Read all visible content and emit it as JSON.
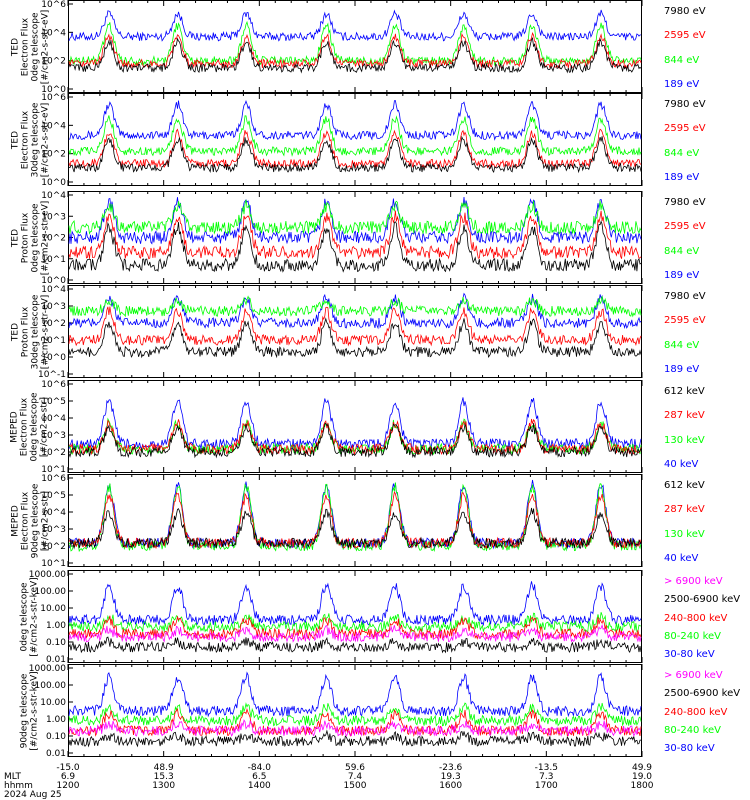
{
  "colors": {
    "blue": "#0000ff",
    "red": "#ff0000",
    "green": "#00ff00",
    "black": "#000000",
    "magenta": "#ff00ff"
  },
  "panels": [
    {
      "id": "ted-e-0deg",
      "ylabel": [
        "TED",
        "Electron Flux",
        "0deg telescope",
        "[#/cm2-s-str-eV]"
      ],
      "yticks": [
        "10^0",
        "10^2",
        "10^4",
        "10^6"
      ],
      "legend": [
        {
          "text": "7980 eV",
          "color": "black"
        },
        {
          "text": "2595 eV",
          "color": "red"
        },
        {
          "text": "844 eV",
          "color": "green"
        },
        {
          "text": "189 eV",
          "color": "blue"
        }
      ]
    },
    {
      "id": "ted-e-30deg",
      "ylabel": [
        "TED",
        "Electron Flux",
        "30deg telescope",
        "[#/cm2-s-str-eV]"
      ],
      "yticks": [
        "10^0",
        "10^2",
        "10^4",
        "10^6"
      ],
      "legend": [
        {
          "text": "7980 eV",
          "color": "black"
        },
        {
          "text": "2595 eV",
          "color": "red"
        },
        {
          "text": "844 eV",
          "color": "green"
        },
        {
          "text": "189 eV",
          "color": "blue"
        }
      ]
    },
    {
      "id": "ted-p-0deg",
      "ylabel": [
        "TED",
        "Proton Flux",
        "0deg telescope",
        "[#/cm2-s-str-eV]"
      ],
      "yticks": [
        "10^0",
        "10^1",
        "10^2",
        "10^3",
        "10^4"
      ],
      "legend": [
        {
          "text": "7980 eV",
          "color": "black"
        },
        {
          "text": "2595 eV",
          "color": "red"
        },
        {
          "text": "844 eV",
          "color": "green"
        },
        {
          "text": "189 eV",
          "color": "blue"
        }
      ]
    },
    {
      "id": "ted-p-30deg",
      "ylabel": [
        "TED",
        "Proton Flux",
        "30deg telescope",
        "[#/cm2-s-str-eV]"
      ],
      "yticks": [
        "10^-1",
        "10^0",
        "10^1",
        "10^2",
        "10^3",
        "10^4"
      ],
      "legend": [
        {
          "text": "7980 eV",
          "color": "black"
        },
        {
          "text": "2595 eV",
          "color": "red"
        },
        {
          "text": "844 eV",
          "color": "green"
        },
        {
          "text": "189 eV",
          "color": "blue"
        }
      ]
    },
    {
      "id": "meped-e-0deg",
      "ylabel": [
        "MEPED",
        "Electron Flux",
        "0deg telescope",
        "[#/cm2-s-str]"
      ],
      "yticks": [
        "10^1",
        "10^2",
        "10^3",
        "10^4",
        "10^5",
        "10^6"
      ],
      "legend": [
        {
          "text": "612 keV",
          "color": "black"
        },
        {
          "text": "287 keV",
          "color": "red"
        },
        {
          "text": "130 keV",
          "color": "green"
        },
        {
          "text": "40 keV",
          "color": "blue"
        }
      ]
    },
    {
      "id": "meped-e-90deg",
      "ylabel": [
        "MEPED",
        "Electron Flux",
        "90deg telescope",
        "[#/cm2-s-str]"
      ],
      "yticks": [
        "10^1",
        "10^2",
        "10^3",
        "10^4",
        "10^5",
        "10^6"
      ],
      "legend": [
        {
          "text": "612 keV",
          "color": "black"
        },
        {
          "text": "287 keV",
          "color": "red"
        },
        {
          "text": "130 keV",
          "color": "green"
        },
        {
          "text": "40 keV",
          "color": "blue"
        }
      ]
    },
    {
      "id": "meped-p-0deg",
      "ylabel": [
        "0deg telescope",
        "[#/cm2-s-str-keV]"
      ],
      "yticks": [
        "0.01",
        "0.10",
        "1.00",
        "10.00",
        "100.00",
        "1000.00"
      ],
      "legend": [
        {
          "text": "> 6900 keV",
          "color": "magenta"
        },
        {
          "text": "2500-6900 keV",
          "color": "black"
        },
        {
          "text": "240-800 keV",
          "color": "red"
        },
        {
          "text": "80-240 keV",
          "color": "green"
        },
        {
          "text": "30-80 keV",
          "color": "blue"
        }
      ]
    },
    {
      "id": "meped-p-90deg",
      "ylabel": [
        "90deg telescope",
        "[#/cm2-s-str-keV]"
      ],
      "yticks": [
        "0.01",
        "0.10",
        "1.00",
        "10.00",
        "100.00",
        "1000.00"
      ],
      "legend": [
        {
          "text": "> 6900 keV",
          "color": "magenta"
        },
        {
          "text": "2500-6900 keV",
          "color": "black"
        },
        {
          "text": "240-800 keV",
          "color": "red"
        },
        {
          "text": "80-240 keV",
          "color": "green"
        },
        {
          "text": "30-80 keV",
          "color": "blue"
        }
      ]
    }
  ],
  "xaxis": {
    "row_labels": [
      "MLT",
      "hhmm",
      "2024 Aug 25"
    ],
    "lat": [
      "-15.0",
      "48.9",
      "-84.0",
      "59.6",
      "-23.6",
      "-13.5",
      "49.9"
    ],
    "mlt": [
      "6.9",
      "15.3",
      "6.5",
      "7.4",
      "19.3",
      "7.3",
      "19.0"
    ],
    "hhmm": [
      "1200",
      "1300",
      "1400",
      "1500",
      "1600",
      "1700",
      "1800"
    ]
  },
  "chart_data": [
    {
      "type": "line",
      "title": "",
      "xlabel": "hhmm",
      "ylabel": "TED Electron Flux 0deg telescope [#/cm2-s-str-eV]",
      "x": [
        "1200",
        "1300",
        "1400",
        "1500",
        "1600",
        "1700",
        "1800"
      ],
      "yscale": "log",
      "ylim": [
        "1e0",
        "1e6"
      ],
      "series": [
        {
          "name": "7980 eV",
          "baseline": 30,
          "peak": 2000
        },
        {
          "name": "2595 eV",
          "baseline": 60,
          "peak": 5000
        },
        {
          "name": "844 eV",
          "baseline": 100,
          "peak": 30000
        },
        {
          "name": "189 eV",
          "baseline": 5000,
          "peak": 200000
        }
      ]
    },
    {
      "type": "line",
      "title": "",
      "xlabel": "hhmm",
      "ylabel": "TED Electron Flux 30deg telescope [#/cm2-s-str-eV]",
      "x": [
        "1200",
        "1300",
        "1400",
        "1500",
        "1600",
        "1700",
        "1800"
      ],
      "yscale": "log",
      "ylim": [
        "1e0",
        "1e6"
      ],
      "series": [
        {
          "name": "7980 eV",
          "baseline": 10,
          "peak": 1000
        },
        {
          "name": "2595 eV",
          "baseline": 20,
          "peak": 3000
        },
        {
          "name": "844 eV",
          "baseline": 150,
          "peak": 30000
        },
        {
          "name": "189 eV",
          "baseline": 2000,
          "peak": 300000
        }
      ]
    },
    {
      "type": "line",
      "title": "",
      "xlabel": "hhmm",
      "ylabel": "TED Proton Flux 0deg telescope [#/cm2-s-str-eV]",
      "x": [
        "1200",
        "1300",
        "1400",
        "1500",
        "1600",
        "1700",
        "1800"
      ],
      "yscale": "log",
      "ylim": [
        "1e0",
        "1e4"
      ],
      "series": [
        {
          "name": "7980 eV",
          "baseline": 5,
          "peak": 300
        },
        {
          "name": "2595 eV",
          "baseline": 20,
          "peak": 1000
        },
        {
          "name": "844 eV",
          "baseline": 300,
          "peak": 3000
        },
        {
          "name": "189 eV",
          "baseline": 100,
          "peak": 5000
        }
      ]
    },
    {
      "type": "line",
      "title": "",
      "xlabel": "hhmm",
      "ylabel": "TED Proton Flux 30deg telescope [#/cm2-s-str-eV]",
      "x": [
        "1200",
        "1300",
        "1400",
        "1500",
        "1600",
        "1700",
        "1800"
      ],
      "yscale": "log",
      "ylim": [
        "1e-1",
        "1e4"
      ],
      "series": [
        {
          "name": "7980 eV",
          "baseline": 2,
          "peak": 100
        },
        {
          "name": "2595 eV",
          "baseline": 10,
          "peak": 500
        },
        {
          "name": "844 eV",
          "baseline": 500,
          "peak": 2000
        },
        {
          "name": "189 eV",
          "baseline": 100,
          "peak": 3000
        }
      ]
    },
    {
      "type": "line",
      "title": "",
      "xlabel": "hhmm",
      "ylabel": "MEPED Electron Flux 0deg telescope [#/cm2-s-str]",
      "x": [
        "1200",
        "1300",
        "1400",
        "1500",
        "1600",
        "1700",
        "1800"
      ],
      "yscale": "log",
      "ylim": [
        "1e1",
        "1e6"
      ],
      "series": [
        {
          "name": "612 keV",
          "baseline": 100,
          "peak": 3000
        },
        {
          "name": "287 keV",
          "baseline": 150,
          "peak": 5000
        },
        {
          "name": "130 keV",
          "baseline": 150,
          "peak": 5000
        },
        {
          "name": "40 keV",
          "baseline": 300,
          "peak": 100000
        }
      ]
    },
    {
      "type": "line",
      "title": "",
      "xlabel": "hhmm",
      "ylabel": "MEPED Electron Flux 90deg telescope [#/cm2-s-str]",
      "x": [
        "1200",
        "1300",
        "1400",
        "1500",
        "1600",
        "1700",
        "1800"
      ],
      "yscale": "log",
      "ylim": [
        "1e1",
        "1e6"
      ],
      "series": [
        {
          "name": "612 keV",
          "baseline": 150,
          "peak": 10000
        },
        {
          "name": "287 keV",
          "baseline": 150,
          "peak": 100000
        },
        {
          "name": "130 keV",
          "baseline": 100,
          "peak": 300000
        },
        {
          "name": "40 keV",
          "baseline": 150,
          "peak": 400000
        }
      ]
    },
    {
      "type": "line",
      "title": "",
      "xlabel": "hhmm",
      "ylabel": "0deg telescope [#/cm2-s-str-keV]",
      "x": [
        "1200",
        "1300",
        "1400",
        "1500",
        "1600",
        "1700",
        "1800"
      ],
      "yscale": "log",
      "ylim": [
        "0.01",
        "1000"
      ],
      "series": [
        {
          "name": "> 6900 keV",
          "baseline": 0.2,
          "peak": 0.5
        },
        {
          "name": "2500-6900 keV",
          "baseline": 0.05,
          "peak": 0.1
        },
        {
          "name": "240-800 keV",
          "baseline": 0.3,
          "peak": 2
        },
        {
          "name": "80-240 keV",
          "baseline": 0.8,
          "peak": 3
        },
        {
          "name": "30-80 keV",
          "baseline": 2,
          "peak": 200
        }
      ]
    },
    {
      "type": "line",
      "title": "",
      "xlabel": "hhmm",
      "ylabel": "90deg telescope [#/cm2-s-str-keV]",
      "x": [
        "1200",
        "1300",
        "1400",
        "1500",
        "1600",
        "1700",
        "1800"
      ],
      "yscale": "log",
      "ylim": [
        "0.01",
        "1000"
      ],
      "series": [
        {
          "name": "> 6900 keV",
          "baseline": 0.2,
          "peak": 0.5
        },
        {
          "name": "2500-6900 keV",
          "baseline": 0.05,
          "peak": 0.1
        },
        {
          "name": "240-800 keV",
          "baseline": 0.2,
          "peak": 2
        },
        {
          "name": "80-240 keV",
          "baseline": 0.8,
          "peak": 5
        },
        {
          "name": "30-80 keV",
          "baseline": 3,
          "peak": 300
        }
      ]
    }
  ]
}
